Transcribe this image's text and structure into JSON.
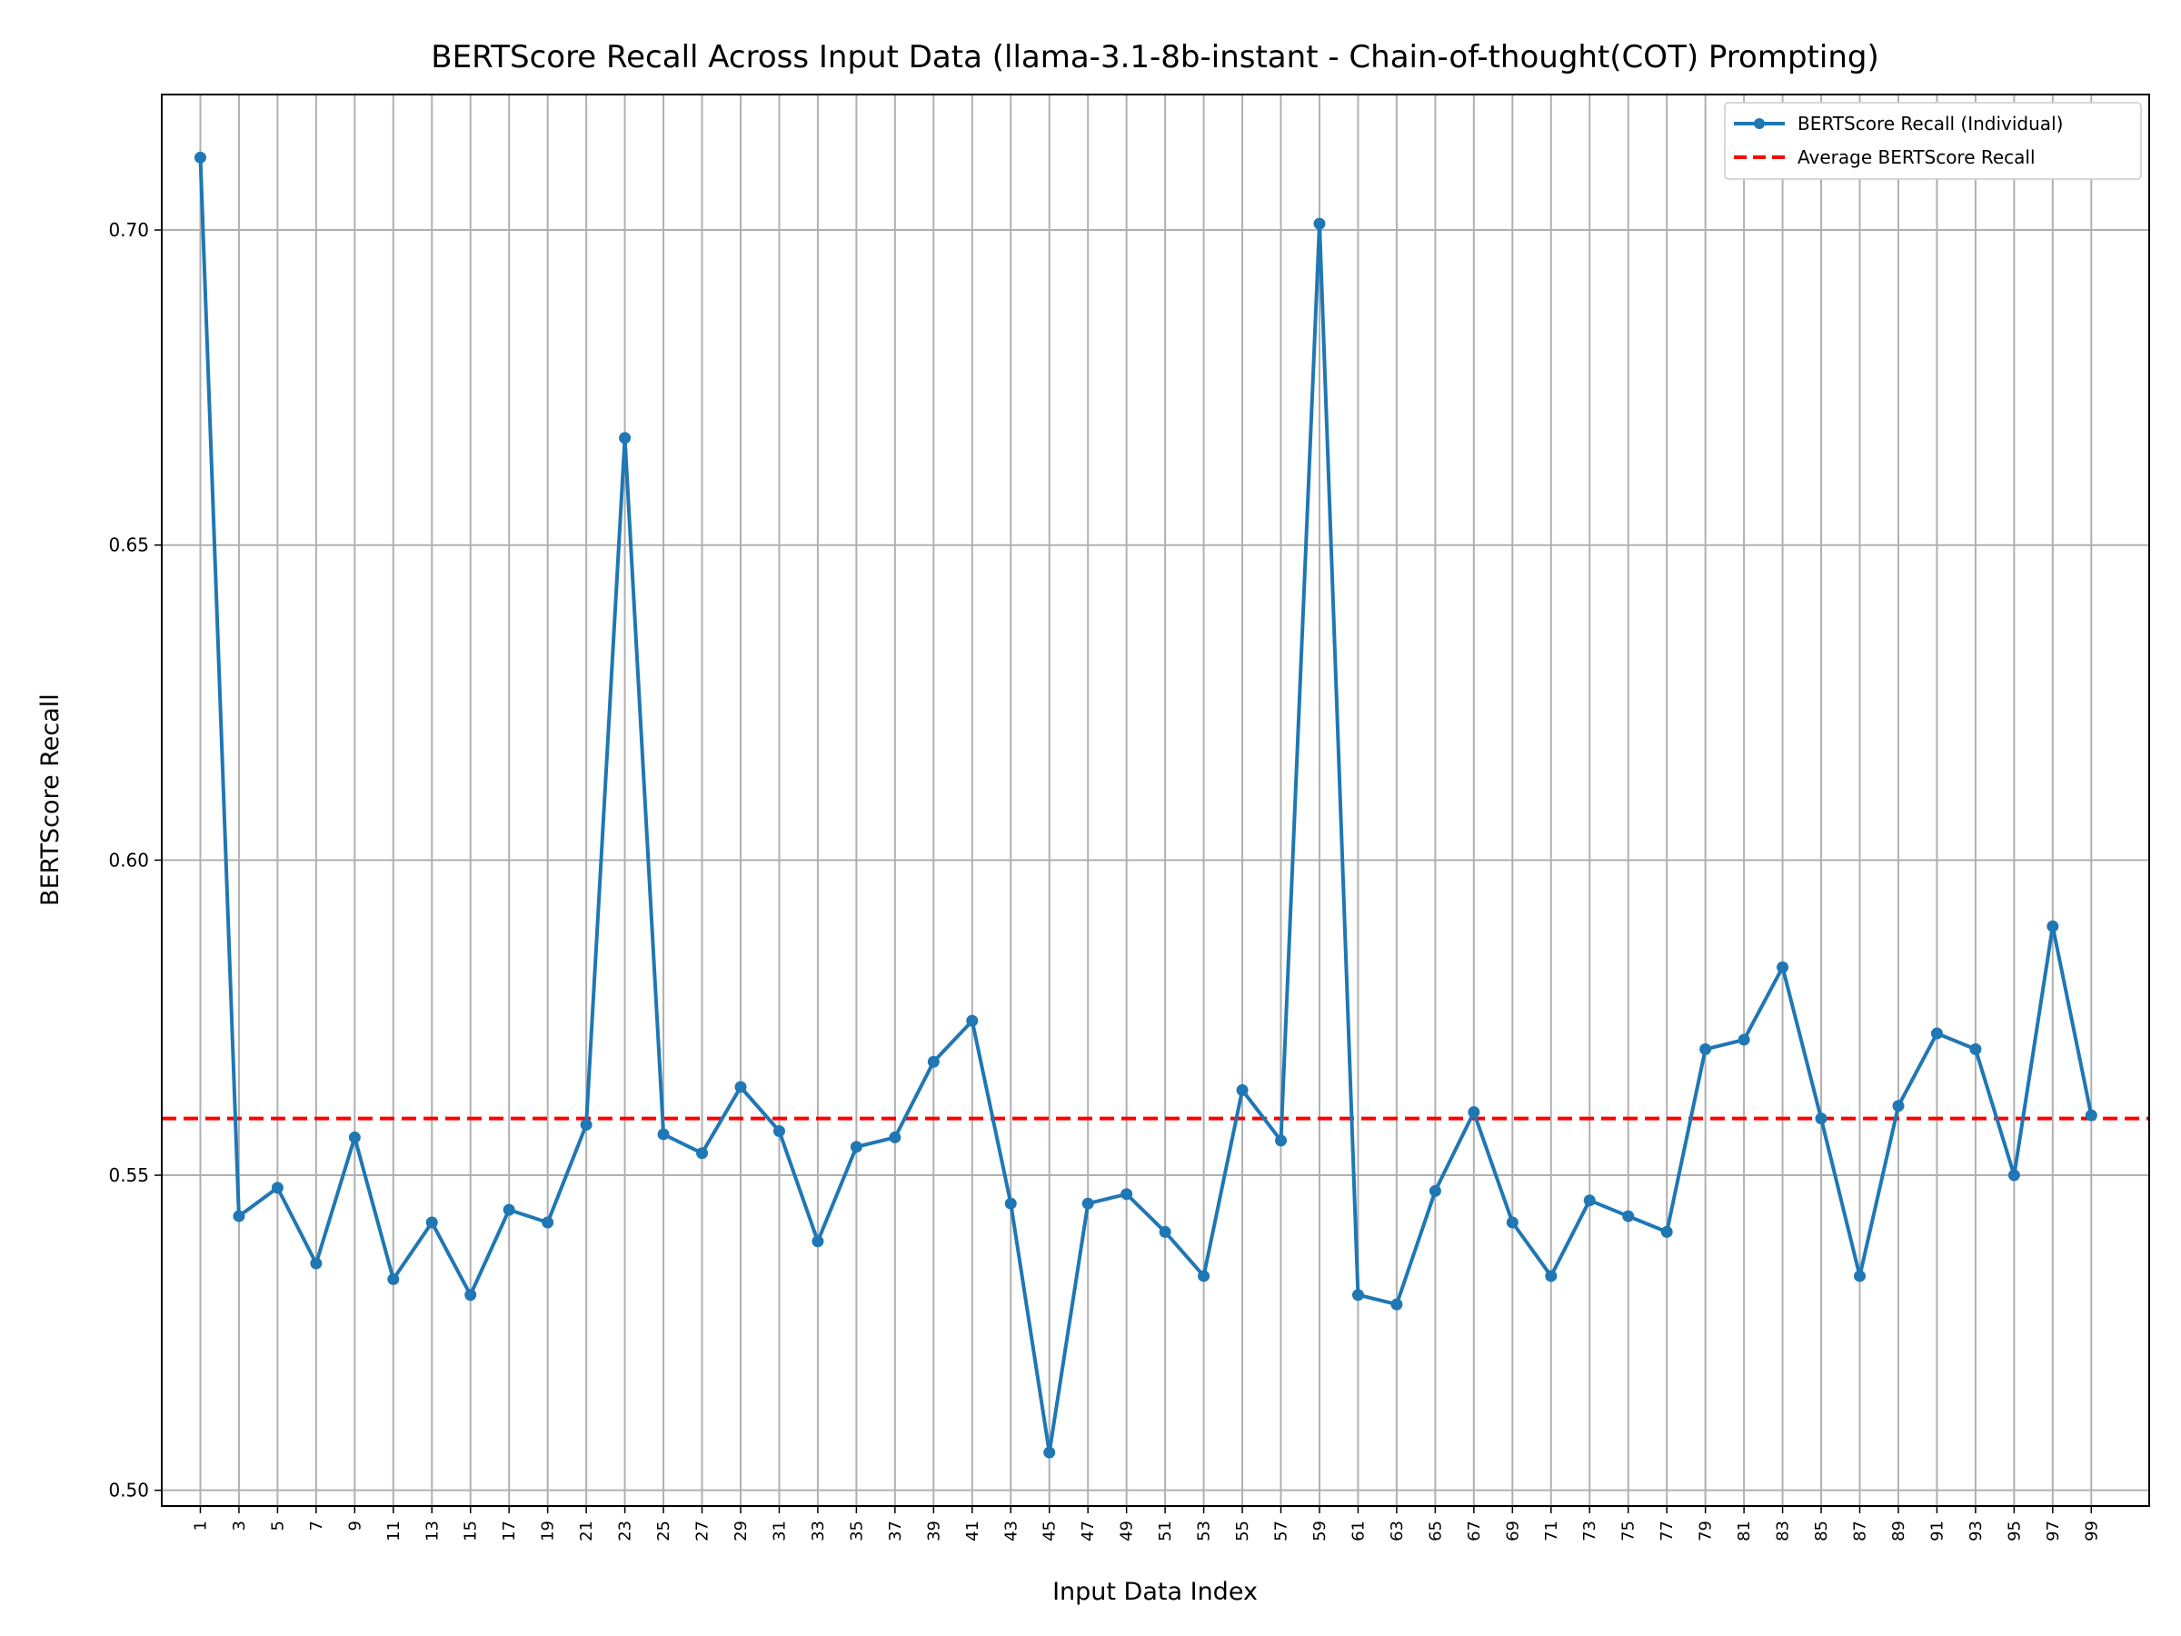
{
  "chart_data": {
    "type": "line",
    "title": "BERTScore Recall Across Input Data (llama-3.1-8b-instant - Chain-of-thought(COT) Prompting)",
    "xlabel": "Input Data Index",
    "ylabel": "BERTScore Recall",
    "xlim": [
      -1,
      102
    ],
    "ylim": [
      0.4975,
      0.7215
    ],
    "yticks": [
      0.5,
      0.55,
      0.6,
      0.65,
      0.7
    ],
    "ytick_labels": [
      "0.50",
      "0.55",
      "0.60",
      "0.65",
      "0.70"
    ],
    "xticks": [
      1,
      3,
      5,
      7,
      9,
      11,
      13,
      15,
      17,
      19,
      21,
      23,
      25,
      27,
      29,
      31,
      33,
      35,
      37,
      39,
      41,
      43,
      45,
      47,
      49,
      51,
      53,
      55,
      57,
      59,
      61,
      63,
      65,
      67,
      69,
      71,
      73,
      75,
      77,
      79,
      81,
      83,
      85,
      87,
      89,
      91,
      93,
      95,
      97,
      99
    ],
    "grid": true,
    "legend_position": "top-right",
    "series": [
      {
        "name": "BERTScore Recall (Individual)",
        "color": "#1f77b4",
        "style": "line-marker",
        "x": [
          1,
          3,
          5,
          7,
          9,
          11,
          13,
          15,
          17,
          19,
          21,
          23,
          25,
          27,
          29,
          31,
          33,
          35,
          37,
          39,
          41,
          43,
          45,
          47,
          49,
          51,
          53,
          55,
          57,
          59,
          61,
          63,
          65,
          67,
          69,
          71,
          73,
          75,
          77,
          79,
          81,
          83,
          85,
          87,
          89,
          91,
          93,
          95,
          97,
          99
        ],
        "values": [
          0.7115,
          0.5435,
          0.548,
          0.536,
          0.556,
          0.5335,
          0.5425,
          0.531,
          0.5445,
          0.5425,
          0.558,
          0.667,
          0.5565,
          0.5535,
          0.564,
          0.557,
          0.5395,
          0.5545,
          0.556,
          0.568,
          0.5745,
          0.5455,
          0.506,
          0.5455,
          0.547,
          0.541,
          0.534,
          0.5635,
          0.5555,
          0.701,
          0.531,
          0.5295,
          0.5475,
          0.56,
          0.5425,
          0.534,
          0.546,
          0.5435,
          0.541,
          0.57,
          0.5715,
          0.583,
          0.559,
          0.534,
          0.561,
          0.5725,
          0.57,
          0.55,
          0.5895,
          0.5595
        ]
      },
      {
        "name": "Average BERTScore Recall",
        "color": "#ff0000",
        "style": "dashed-hline",
        "value": 0.559
      }
    ]
  }
}
